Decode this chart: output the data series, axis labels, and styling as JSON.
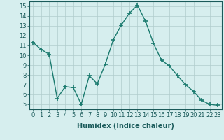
{
  "x": [
    0,
    1,
    2,
    3,
    4,
    5,
    6,
    7,
    8,
    9,
    10,
    11,
    12,
    13,
    14,
    15,
    16,
    17,
    18,
    19,
    20,
    21,
    22,
    23
  ],
  "y": [
    11.3,
    10.6,
    10.1,
    5.6,
    6.8,
    6.7,
    5.0,
    7.9,
    7.1,
    9.1,
    11.6,
    13.1,
    14.3,
    15.1,
    13.5,
    11.2,
    9.5,
    8.9,
    7.9,
    7.0,
    6.3,
    5.4,
    5.0,
    4.9
  ],
  "line_color": "#1a7a6e",
  "marker": "+",
  "marker_size": 4,
  "marker_lw": 1.2,
  "xlabel": "Humidex (Indice chaleur)",
  "xlim": [
    -0.5,
    23.5
  ],
  "ylim": [
    4.5,
    15.5
  ],
  "yticks": [
    5,
    6,
    7,
    8,
    9,
    10,
    11,
    12,
    13,
    14,
    15
  ],
  "xticks": [
    0,
    1,
    2,
    3,
    4,
    5,
    6,
    7,
    8,
    9,
    10,
    11,
    12,
    13,
    14,
    15,
    16,
    17,
    18,
    19,
    20,
    21,
    22,
    23
  ],
  "bg_color": "#d6eeee",
  "grid_color": "#b0cccc",
  "label_fontsize": 7,
  "tick_fontsize": 6,
  "linewidth": 1.0
}
